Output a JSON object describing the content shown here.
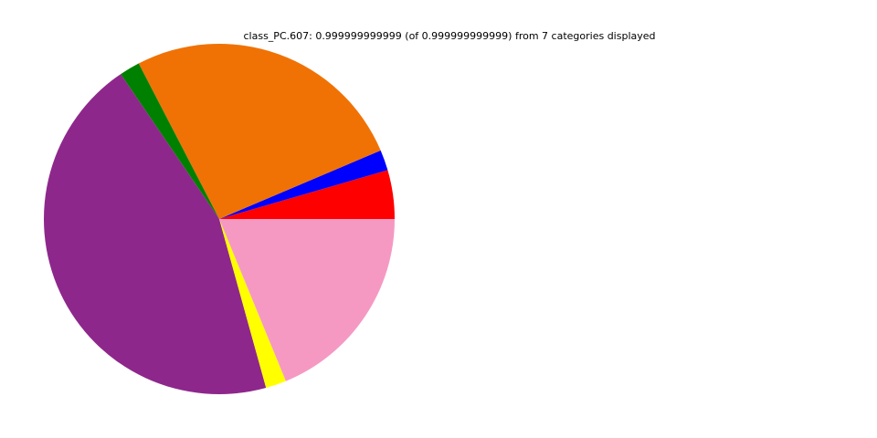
{
  "chart_data": {
    "type": "pie",
    "title": "class_PC.607: 0.999999999999 (of 0.999999999999) from 7 categories displayed",
    "start_angle_deg": 0,
    "direction": "counterclockwise",
    "legend": "none",
    "slices": [
      {
        "color": "#ff0000",
        "value": 0.045
      },
      {
        "color": "#0000ff",
        "value": 0.019
      },
      {
        "color": "#f07205",
        "value": 0.262
      },
      {
        "color": "#008000",
        "value": 0.019
      },
      {
        "color": "#8e278b",
        "value": 0.448
      },
      {
        "color": "#ffff00",
        "value": 0.019
      },
      {
        "color": "#f599c3",
        "value": 0.188
      }
    ]
  }
}
